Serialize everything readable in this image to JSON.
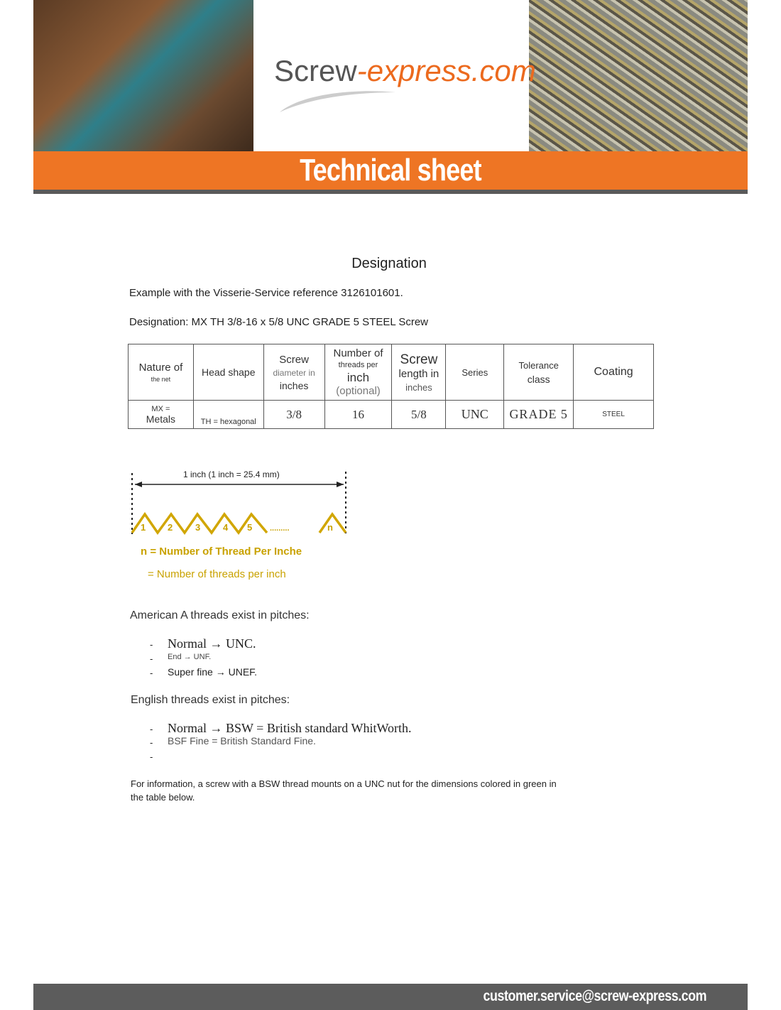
{
  "header": {
    "logo_main": "Screw",
    "logo_accent": "-express.com",
    "banner_title": "Technical sheet"
  },
  "designation": {
    "title": "Designation",
    "example": "Example with the Visserie-Service reference 3126101601.",
    "designation_line": "Designation: MX TH 3/8-16 x 5/8 UNC GRADE 5 STEEL Screw",
    "table": {
      "headers": [
        {
          "main": "Nature of",
          "sub": "the net"
        },
        {
          "main": "Head shape"
        },
        {
          "main": "Screw",
          "sub": "diameter in",
          "extra": "inches"
        },
        {
          "main": "Number of",
          "sub": "threads per",
          "extra": "inch",
          "extra2": "(optional)"
        },
        {
          "main": "Screw",
          "sub": "length in",
          "extra": "inches"
        },
        {
          "main": "Series"
        },
        {
          "main": "Tolerance",
          "sub": "class"
        },
        {
          "main": "Coating"
        }
      ],
      "row": [
        {
          "top": "MX =",
          "bottom": "Metals"
        },
        "TH = hexagonal",
        "3/8",
        "16",
        "5/8",
        "UNC",
        "GRADE 5",
        "STEEL"
      ]
    }
  },
  "diagram": {
    "dimension": "1 inch (1 inch = 25.4 mm)",
    "labels": [
      "1",
      "2",
      "3",
      "4",
      "5",
      "n"
    ],
    "dots": ".........",
    "legend1": "n = Number of Thread Per Inche",
    "legend2": "= Number of threads per inch",
    "color": "#c9a200"
  },
  "american": {
    "heading": "American A threads exist in pitches:",
    "items": [
      "Normal → UNC.",
      "End → UNF.",
      "Super fine → UNEF."
    ]
  },
  "english": {
    "heading": "English threads exist in pitches:",
    "items": [
      "Normal → BSW = British standard WhitWorth.",
      "BSF Fine = British Standard Fine.",
      ""
    ]
  },
  "info": {
    "line1": "For information, a screw with a BSW thread mounts on a UNC nut for the dimensions colored in green in",
    "line2": "the table below."
  },
  "footer": {
    "email": "customer.service@screw-express.com"
  }
}
